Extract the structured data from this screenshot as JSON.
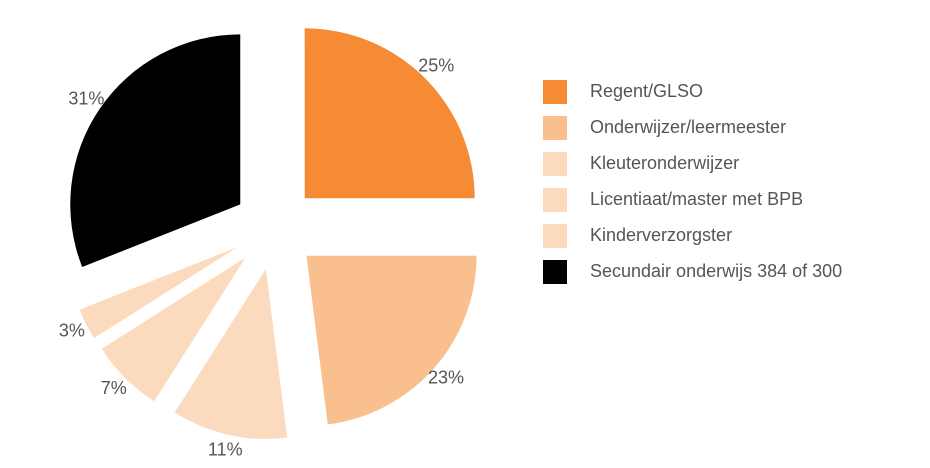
{
  "chart_data": {
    "type": "pie",
    "categories": [
      "Regent/GLSO",
      "Onderwijzer/leermeester",
      "Kleuteronderwijzer",
      "Licentiaat/master met BPB",
      "Kinderverzorgster",
      "Secundair onderwijs 384 of 300"
    ],
    "values": [
      25,
      23,
      11,
      7,
      3,
      31
    ],
    "value_labels": [
      "25%",
      "23%",
      "11%",
      "7%",
      "3%",
      "31%"
    ],
    "colors": [
      "#f58b35",
      "#f9bf8f",
      "#fcdabd",
      "#fcdabd",
      "#fcdabd",
      "#000000"
    ]
  }
}
